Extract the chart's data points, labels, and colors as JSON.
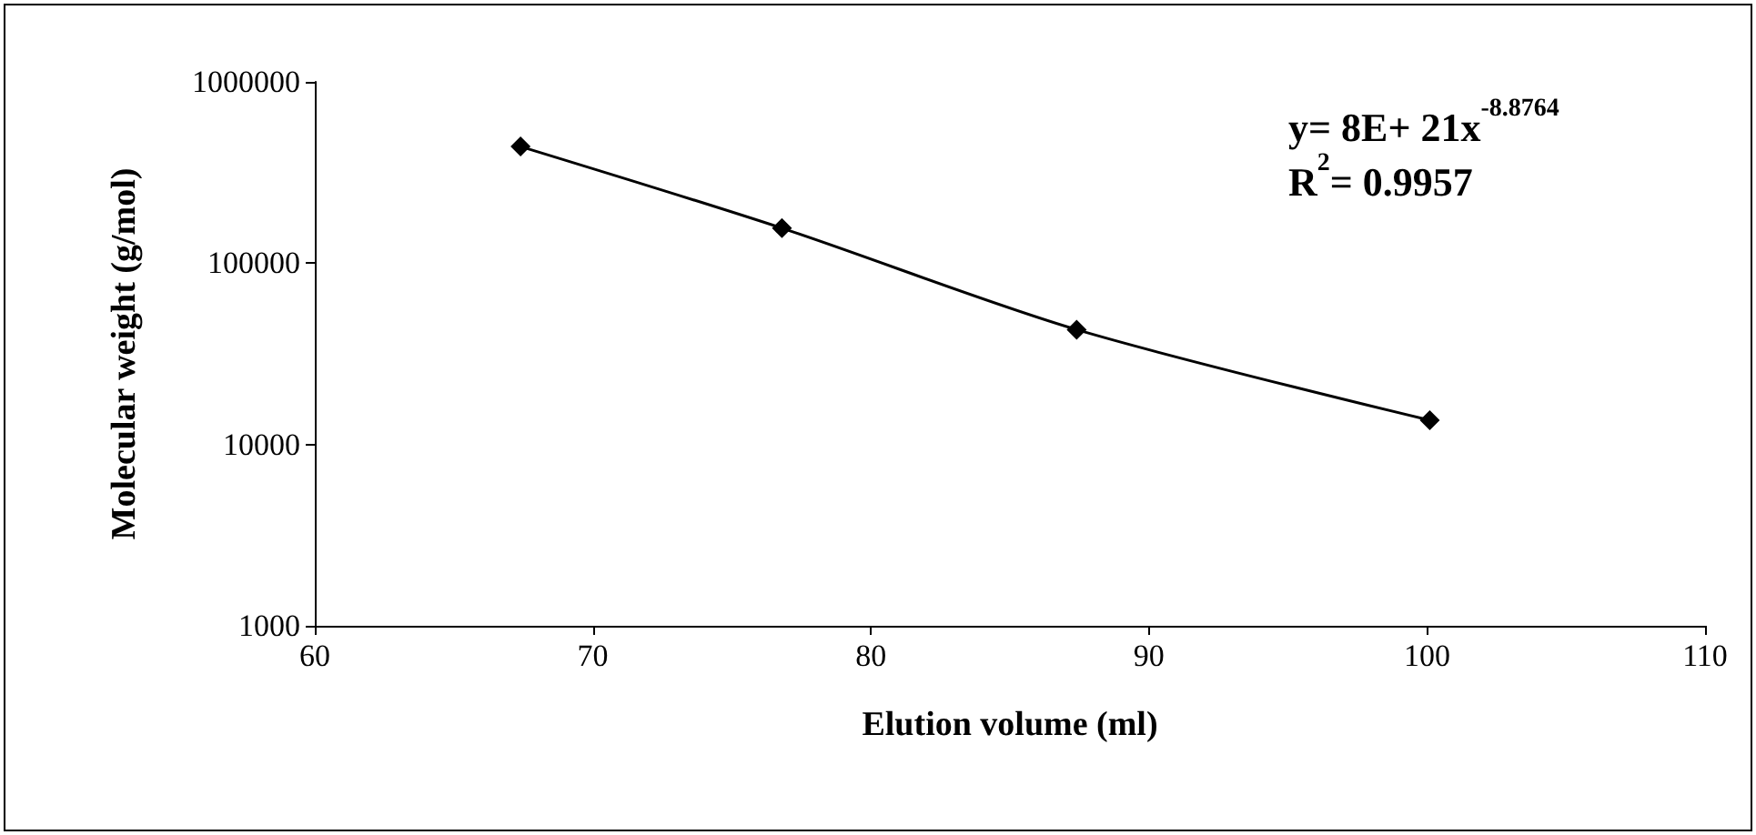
{
  "chart_data": {
    "type": "line",
    "xlabel": "Elution volume (ml)",
    "ylabel": "Molecular weight (g/mol)",
    "x": [
      67.4,
      76.8,
      87.4,
      100.1
    ],
    "series": [
      {
        "color": "#000000",
        "values": [
          440000,
          156000,
          43000,
          13600
        ]
      }
    ],
    "xlim": [
      60,
      110
    ],
    "xticks": [
      60,
      70,
      80,
      90,
      100,
      110
    ],
    "ylim": [
      1000,
      1000000
    ],
    "yticks": [
      1000,
      10000,
      100000,
      1000000
    ],
    "log": "y",
    "grid": false,
    "marker": "diamond",
    "line_style": "solid",
    "annotations": [
      "y= 8E+ 21x$^{-8.8764}$",
      "R$^{2}$= 0.9957"
    ]
  }
}
